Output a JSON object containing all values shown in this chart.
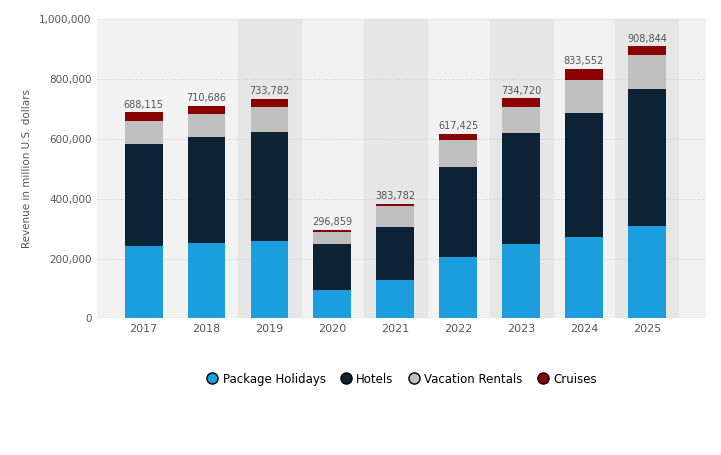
{
  "years": [
    2017,
    2018,
    2019,
    2020,
    2021,
    2022,
    2023,
    2024,
    2025
  ],
  "totals": [
    688115,
    710686,
    733782,
    296859,
    383782,
    617425,
    734720,
    833552,
    908844
  ],
  "package_holidays": [
    243000,
    252000,
    258000,
    95000,
    128000,
    205000,
    248000,
    272000,
    307000
  ],
  "hotels": [
    340000,
    355000,
    365000,
    155000,
    178000,
    300000,
    370000,
    415000,
    460000
  ],
  "vacation_rentals": [
    75000,
    75000,
    82000,
    40000,
    70000,
    90000,
    88000,
    110000,
    113000
  ],
  "cruises": [
    30115,
    28686,
    28782,
    6859,
    7782,
    22425,
    28720,
    36552,
    28844
  ],
  "colors": {
    "package_holidays": "#1a9edd",
    "hotels": "#0d2235",
    "vacation_rentals": "#c0c0c0",
    "cruises": "#8b0000"
  },
  "ylabel": "Revenue in million U.S. dollars",
  "ylim": [
    0,
    1000000
  ],
  "yticks": [
    0,
    200000,
    400000,
    600000,
    800000,
    1000000
  ],
  "ytick_labels": [
    "0",
    "200,000",
    "400,000",
    "600,000",
    "800,000",
    "1,000,000"
  ],
  "legend_labels": [
    "Package Holidays",
    "Hotels",
    "Vacation Rentals",
    "Cruises"
  ],
  "bg_color": "#ffffff",
  "plot_bg_light": "#f2f2f2",
  "plot_bg_dark": "#e6e6e6",
  "grid_color": "#d0d0d0",
  "label_color": "#555555",
  "shaded_years": [
    2019,
    2021,
    2023,
    2025
  ]
}
